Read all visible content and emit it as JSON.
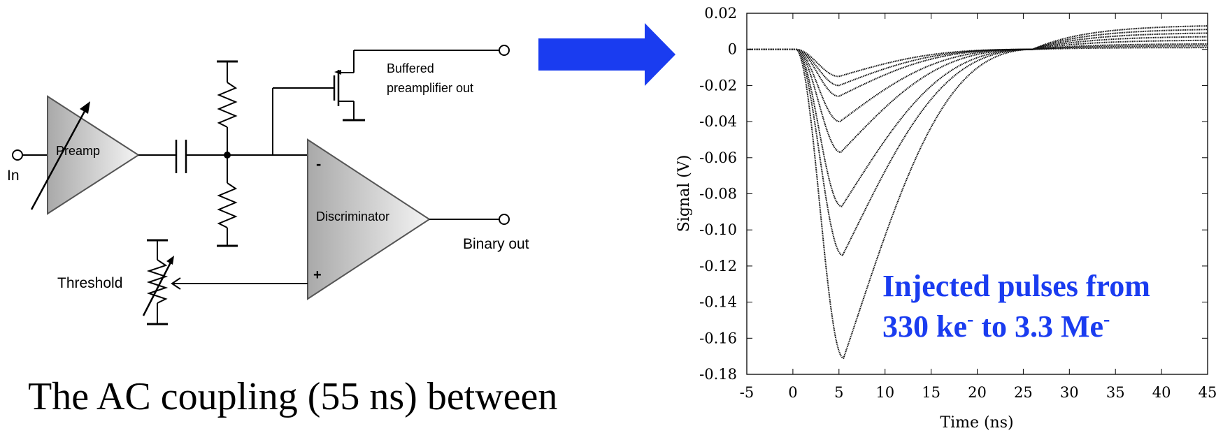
{
  "circuit": {
    "input_label": "In",
    "preamp_label": "Preamp",
    "buffer_label_line1": "Buffered",
    "buffer_label_line2": "preamplifier out",
    "discriminator_label": "Discriminator",
    "minus_sign": "-",
    "plus_sign": "+",
    "binary_out_label": "Binary out",
    "threshold_label": "Threshold"
  },
  "caption": "The AC coupling (55 ns) between",
  "arrow_color": "#1a3cf0",
  "annotation": {
    "line1": "Injected pulses from",
    "line2_a": "330 ke",
    "line2_sup1": "-",
    "line2_b": " to 3.3 Me",
    "line2_sup2": "-",
    "color": "#1a3cf0"
  },
  "chart_data": {
    "type": "line",
    "xlabel": "Time (ns)",
    "ylabel": "Signal (V)",
    "xlim": [
      -5,
      45
    ],
    "ylim": [
      -0.18,
      0.02
    ],
    "x_ticks": [
      -5,
      0,
      5,
      10,
      15,
      20,
      25,
      30,
      35,
      40,
      45
    ],
    "y_ticks": [
      0.02,
      0,
      -0.02,
      -0.04,
      -0.06,
      -0.08,
      -0.1,
      -0.12,
      -0.14,
      -0.16,
      -0.18
    ],
    "y_tick_labels": [
      "0.02",
      "0",
      "-0.02",
      "-0.04",
      "-0.06",
      "-0.08",
      "-0.10",
      "-0.12",
      "-0.14",
      "-0.16",
      "-0.18"
    ],
    "series": [
      {
        "peak_time": 5.0,
        "peak_value": -0.015,
        "end_value": 0.001
      },
      {
        "peak_time": 5.0,
        "peak_value": -0.02,
        "end_value": 0.002
      },
      {
        "peak_time": 5.0,
        "peak_value": -0.026,
        "end_value": 0.003
      },
      {
        "peak_time": 5.1,
        "peak_value": -0.04,
        "end_value": 0.005
      },
      {
        "peak_time": 5.2,
        "peak_value": -0.057,
        "end_value": 0.007
      },
      {
        "peak_time": 5.3,
        "peak_value": -0.087,
        "end_value": 0.009
      },
      {
        "peak_time": 5.4,
        "peak_value": -0.114,
        "end_value": 0.011
      },
      {
        "peak_time": 5.5,
        "peak_value": -0.171,
        "end_value": 0.013
      }
    ]
  }
}
